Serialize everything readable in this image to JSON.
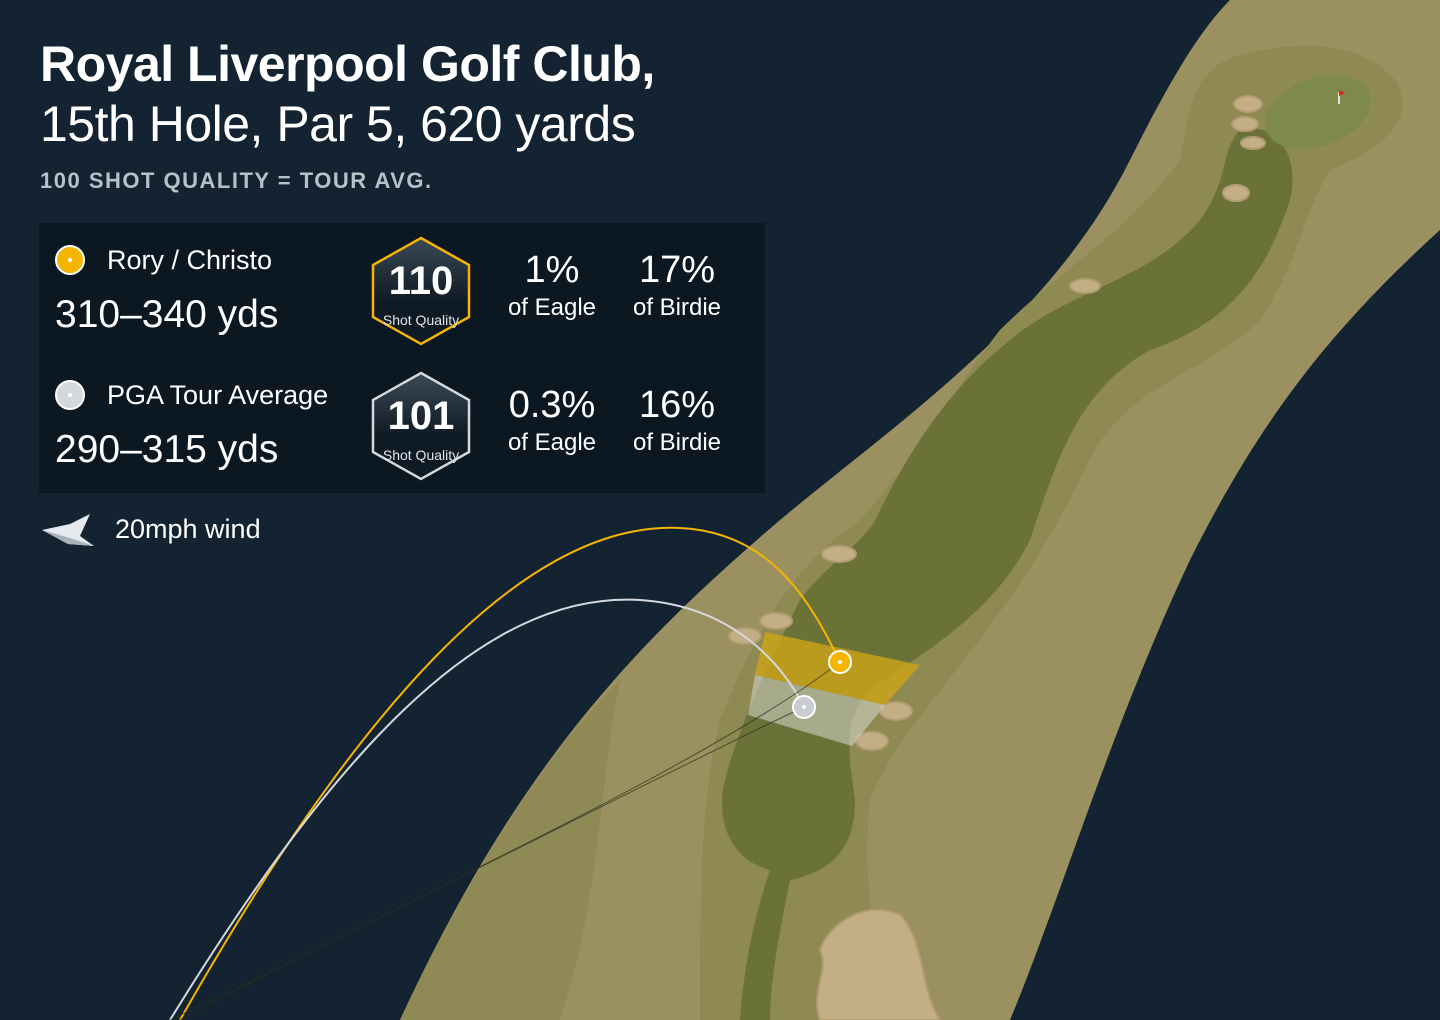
{
  "header": {
    "title_line1": "Royal Liverpool Golf Club,",
    "title_line2": "15th Hole, Par 5, 620 yards",
    "subtitle": "100 SHOT QUALITY = TOUR AVG."
  },
  "players": [
    {
      "name": "Rory / Christo",
      "distance": "310–340 yds",
      "shot_quality": "110",
      "shot_quality_label": "Shot Quality",
      "eagle": "1%",
      "eagle_label": "of Eagle",
      "birdie": "17%",
      "birdie_label": "of Birdie",
      "color": "#f5b400"
    },
    {
      "name": "PGA Tour Average",
      "distance": "290–315 yds",
      "shot_quality": "101",
      "shot_quality_label": "Shot Quality",
      "eagle": "0.3%",
      "eagle_label": "of Eagle",
      "birdie": "16%",
      "birdie_label": "of Birdie",
      "color": "#d4d8dc"
    }
  ],
  "wind": {
    "label": "20mph wind",
    "icon": "wind-arrow-icon"
  },
  "colors": {
    "background": "#142331",
    "rough": "#9b9160",
    "fairway": "#6b7238",
    "bunker": "#c4ae86",
    "rory": "#f5b400",
    "tour": "#d4d8dc"
  }
}
